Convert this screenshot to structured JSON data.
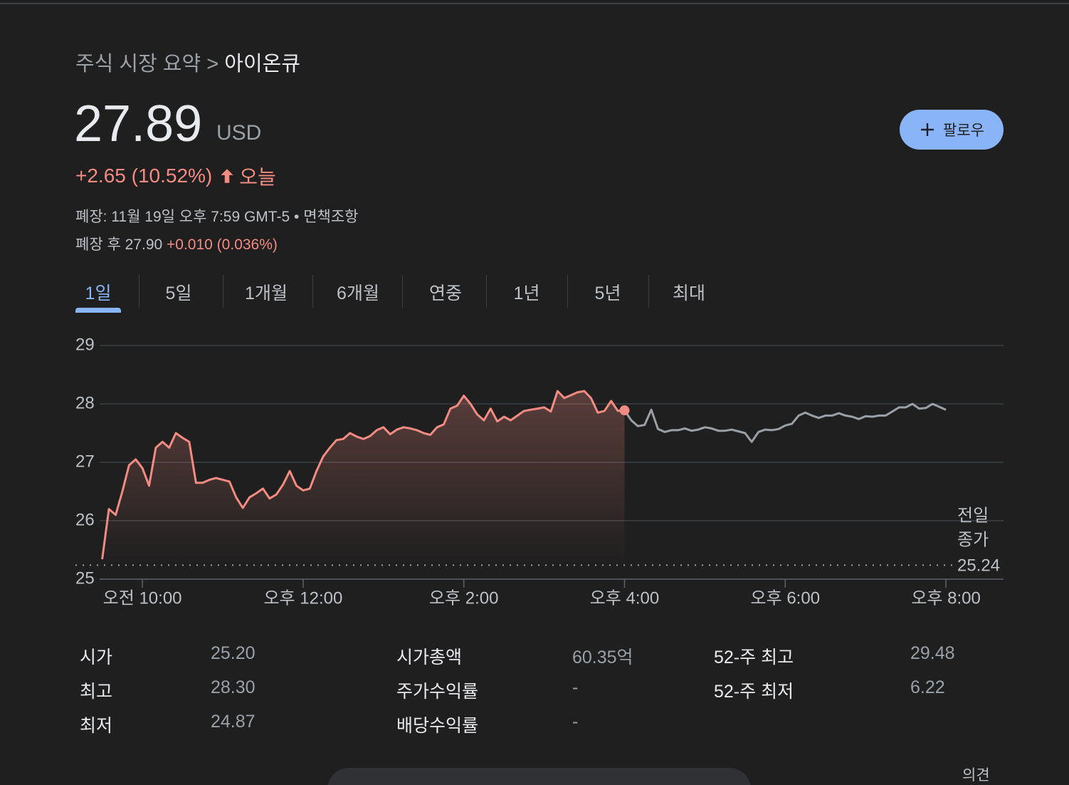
{
  "breadcrumb": {
    "parent": "주식 시장 요약",
    "separator": ">",
    "current": "아이온큐"
  },
  "quote": {
    "price": "27.89",
    "currency": "USD",
    "change": "+2.65 (10.52%)",
    "period": "오늘",
    "status": "폐장: 11월 19일 오후 7:59 GMT-5",
    "status_separator": "•",
    "disclaimer": "면책조항",
    "after_hours_label": "폐장 후 27.90",
    "after_hours_change": "+0.010 (0.036%)"
  },
  "follow_button": "팔로우",
  "tabs": [
    "1일",
    "5일",
    "1개월",
    "6개월",
    "연중",
    "1년",
    "5년",
    "최대"
  ],
  "active_tab": 0,
  "chart_data": {
    "type": "line",
    "xlim": [
      550,
      1243
    ],
    "xticks": [
      {
        "value": 600,
        "label": "오전 10:00"
      },
      {
        "value": 720,
        "label": "오후 12:00"
      },
      {
        "value": 840,
        "label": "오후 2:00"
      },
      {
        "value": 960,
        "label": "오후 4:00"
      },
      {
        "value": 1080,
        "label": "오후 6:00"
      },
      {
        "value": 1200,
        "label": "오후 8:00"
      }
    ],
    "ylim": [
      25,
      29
    ],
    "yticks": [
      25,
      26,
      27,
      28,
      29
    ],
    "grid": true,
    "series": [
      {
        "color": "#f28b82",
        "x": [
          570,
          575,
          580,
          585,
          590,
          595,
          600,
          605,
          610,
          615,
          620,
          625,
          630,
          635,
          640,
          645,
          650,
          655,
          660,
          665,
          670,
          675,
          680,
          685,
          690,
          695,
          700,
          705,
          710,
          715,
          720,
          725,
          730,
          735,
          740,
          745,
          750,
          755,
          760,
          765,
          770,
          775,
          780,
          785,
          790,
          795,
          800,
          805,
          810,
          815,
          820,
          825,
          830,
          835,
          840,
          845,
          850,
          855,
          860,
          865,
          870,
          875,
          880,
          885,
          890,
          895,
          900,
          905,
          910,
          915,
          920,
          925,
          930,
          935,
          940,
          945,
          950,
          955,
          960
        ],
        "values": [
          25.34,
          26.2,
          26.1,
          26.5,
          26.95,
          27.05,
          26.9,
          26.6,
          27.25,
          27.35,
          27.25,
          27.5,
          27.42,
          27.35,
          26.65,
          26.65,
          26.7,
          26.73,
          26.7,
          26.67,
          26.4,
          26.22,
          26.4,
          26.47,
          26.55,
          26.38,
          26.45,
          26.62,
          26.85,
          26.6,
          26.52,
          26.55,
          26.85,
          27.1,
          27.25,
          27.38,
          27.4,
          27.5,
          27.44,
          27.4,
          27.45,
          27.55,
          27.6,
          27.48,
          27.56,
          27.6,
          27.58,
          27.55,
          27.5,
          27.47,
          27.6,
          27.65,
          27.92,
          27.97,
          28.14,
          28.0,
          27.82,
          27.72,
          27.92,
          27.7,
          27.78,
          27.72,
          27.8,
          27.88,
          27.9,
          27.92,
          27.94,
          27.87,
          28.22,
          28.1,
          28.15,
          28.2,
          28.22,
          28.1,
          27.85,
          27.88,
          28.05,
          27.88,
          27.89
        ]
      },
      {
        "color": "#9aa0a6",
        "x": [
          960,
          965,
          970,
          975,
          980,
          985,
          990,
          995,
          1000,
          1005,
          1010,
          1015,
          1020,
          1025,
          1030,
          1035,
          1040,
          1045,
          1050,
          1055,
          1060,
          1065,
          1070,
          1075,
          1080,
          1085,
          1090,
          1095,
          1100,
          1105,
          1110,
          1115,
          1120,
          1125,
          1130,
          1135,
          1140,
          1145,
          1150,
          1155,
          1160,
          1165,
          1170,
          1175,
          1180,
          1185,
          1190,
          1195,
          1200
        ],
        "values": [
          27.89,
          27.72,
          27.62,
          27.64,
          27.9,
          27.57,
          27.52,
          27.55,
          27.55,
          27.58,
          27.54,
          27.56,
          27.6,
          27.58,
          27.54,
          27.54,
          27.56,
          27.53,
          27.5,
          27.35,
          27.52,
          27.56,
          27.55,
          27.57,
          27.63,
          27.66,
          27.8,
          27.85,
          27.8,
          27.76,
          27.8,
          27.8,
          27.84,
          27.8,
          27.78,
          27.74,
          27.79,
          27.78,
          27.8,
          27.8,
          27.87,
          27.94,
          27.94,
          28.0,
          27.92,
          27.93,
          28.0,
          27.95,
          27.9
        ]
      }
    ],
    "previous_close": {
      "label_lines": [
        "전일",
        "종가"
      ],
      "value": 25.24
    }
  },
  "stats": [
    {
      "label": "시가",
      "value": "25.20"
    },
    {
      "label": "최고",
      "value": "28.30"
    },
    {
      "label": "최저",
      "value": "24.87"
    },
    {
      "label": "시가총액",
      "value": "60.35억"
    },
    {
      "label": "주가수익률",
      "value": "-"
    },
    {
      "label": "배당수익률",
      "value": "-"
    },
    {
      "label": "52-주 최고",
      "value": "29.48"
    },
    {
      "label": "52-주 최저",
      "value": "6.22"
    }
  ],
  "feedback": "의견"
}
